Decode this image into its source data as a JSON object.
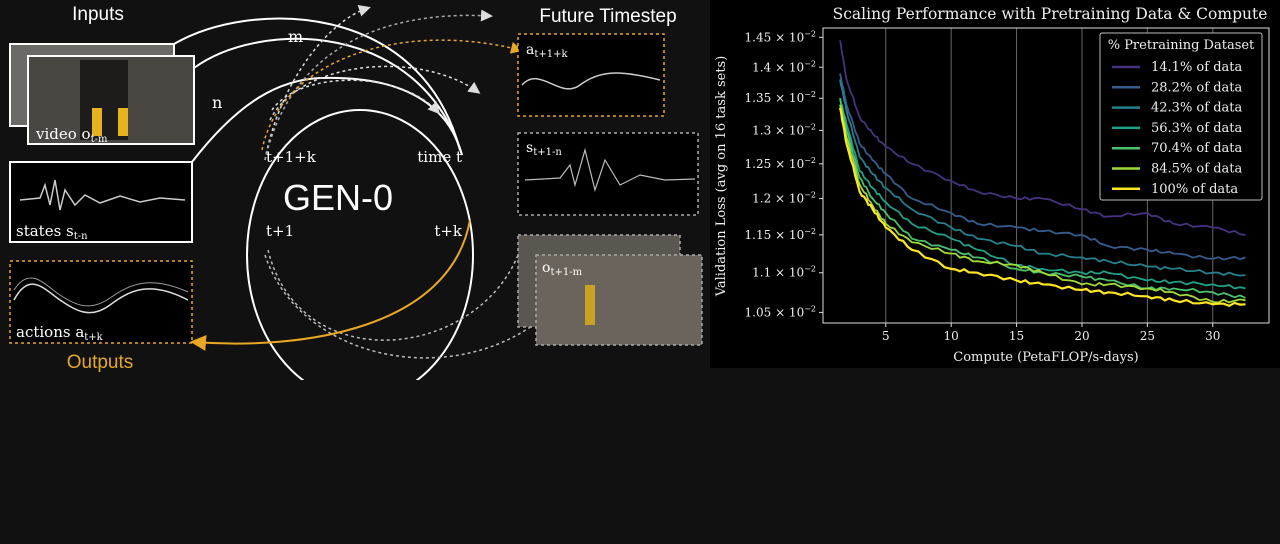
{
  "diagram": {
    "inputs_label": "Inputs",
    "outputs_label": "Outputs",
    "future_label": "Future Timestep",
    "center_label": "GEN-0",
    "video_label": "video o",
    "video_sub": "t-m",
    "states_label": "states s",
    "states_sub": "t-n",
    "actions_label": "actions a",
    "actions_sub": "t+k",
    "future_action": "a",
    "future_action_sub": "t+1+k",
    "future_state": "s",
    "future_state_sub": "t+1-n",
    "future_obs": "o",
    "future_obs_sub": "t+1-m",
    "m_label": "m",
    "n_label": "n",
    "clock_labels": {
      "top_left": "t+1+k",
      "top_right": "time t",
      "bottom_left": "t+1",
      "bottom_right": "t+k"
    },
    "colors": {
      "accent": "#e8a825",
      "line": "#ffffff"
    }
  },
  "chart_data": {
    "type": "line",
    "title": "Scaling Performance with Pretraining Data & Compute",
    "xlabel": "Compute (PetaFLOP/s-days)",
    "ylabel": "Validation Loss (avg on 16 task sets)",
    "xlim": [
      0.2,
      34.3
    ],
    "ylim": [
      0.01037,
      0.01466
    ],
    "yscale": "log",
    "xticks": [
      "5",
      "10",
      "15",
      "20",
      "25",
      "30"
    ],
    "yticks": [
      {
        "mant": "1.45",
        "value": 0.0145
      },
      {
        "mant": "1.4",
        "value": 0.014
      },
      {
        "mant": "1.35",
        "value": 0.0135
      },
      {
        "mant": "1.3",
        "value": 0.013
      },
      {
        "mant": "1.25",
        "value": 0.0125
      },
      {
        "mant": "1.2",
        "value": 0.012
      },
      {
        "mant": "1.15",
        "value": 0.0115
      },
      {
        "mant": "1.1",
        "value": 0.011
      },
      {
        "mant": "1.05",
        "value": 0.0105
      }
    ],
    "ytick_suffix": "× 10",
    "ytick_exp": "−2",
    "grid": "vertical",
    "legend": {
      "title": "% Pretraining Dataset",
      "placement": "top-right"
    },
    "x": [
      1.5,
      2,
      3,
      4,
      5,
      7,
      10,
      12,
      15,
      17,
      20,
      22,
      25,
      27,
      30,
      32.5
    ],
    "series": [
      {
        "name": "14.1% of data",
        "color": "#46327e",
        "values": [
          1.445,
          1.38,
          1.32,
          1.295,
          1.275,
          1.25,
          1.225,
          1.21,
          1.2,
          1.2,
          1.185,
          1.175,
          1.18,
          1.165,
          1.16,
          1.15
        ]
      },
      {
        "name": "28.2% of data",
        "color": "#365c8d",
        "values": [
          1.39,
          1.34,
          1.28,
          1.255,
          1.235,
          1.2,
          1.18,
          1.165,
          1.16,
          1.155,
          1.15,
          1.135,
          1.13,
          1.125,
          1.118,
          1.12
        ]
      },
      {
        "name": "42.3% of data",
        "color": "#277f8e",
        "values": [
          1.38,
          1.33,
          1.26,
          1.235,
          1.215,
          1.185,
          1.16,
          1.145,
          1.135,
          1.125,
          1.12,
          1.115,
          1.108,
          1.105,
          1.1,
          1.097
        ]
      },
      {
        "name": "56.3% of data",
        "color": "#1fa187",
        "values": [
          1.35,
          1.31,
          1.24,
          1.215,
          1.195,
          1.165,
          1.145,
          1.13,
          1.11,
          1.105,
          1.1,
          1.1,
          1.09,
          1.088,
          1.085,
          1.08
        ]
      },
      {
        "name": "70.4% of data",
        "color": "#4ac16d",
        "values": [
          1.35,
          1.3,
          1.23,
          1.2,
          1.18,
          1.145,
          1.13,
          1.12,
          1.105,
          1.1,
          1.095,
          1.09,
          1.08,
          1.08,
          1.075,
          1.068
        ]
      },
      {
        "name": "84.5% of data",
        "color": "#a0da39",
        "values": [
          1.34,
          1.29,
          1.22,
          1.19,
          1.165,
          1.14,
          1.125,
          1.115,
          1.11,
          1.1,
          1.085,
          1.085,
          1.08,
          1.075,
          1.063,
          1.065
        ]
      },
      {
        "name": "100% of data",
        "color": "#fde725",
        "values": [
          1.335,
          1.28,
          1.21,
          1.185,
          1.16,
          1.13,
          1.105,
          1.1,
          1.09,
          1.085,
          1.078,
          1.075,
          1.07,
          1.065,
          1.06,
          1.06
        ]
      }
    ],
    "value_scale_note_unit": "×10^-2"
  }
}
